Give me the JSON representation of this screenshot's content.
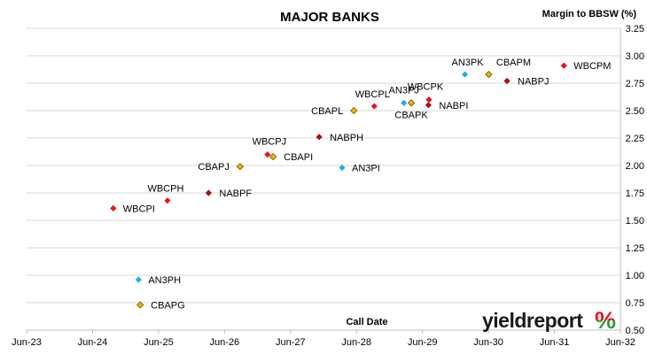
{
  "chart_data": {
    "type": "scatter",
    "title": "MAJOR BANKS",
    "xlabel": "Call Date",
    "ylabel": "Margin to BBSW (%)",
    "x_tick_labels": [
      "Jun-23",
      "Jun-24",
      "Jun-25",
      "Jun-26",
      "Jun-27",
      "Jun-28",
      "Jun-29",
      "Jun-30",
      "Jun-31",
      "Jun-32"
    ],
    "xlim": [
      "2023-06",
      "2032-06"
    ],
    "ylim": [
      0.5,
      3.25
    ],
    "y_ticks": [
      "0.50",
      "0.75",
      "1.00",
      "1.25",
      "1.50",
      "1.75",
      "2.00",
      "2.25",
      "2.50",
      "2.75",
      "3.00",
      "3.25"
    ],
    "grid": "horizontal",
    "legend": "none",
    "series": [
      {
        "color": "#e8141b",
        "marker": "diamond",
        "points": [
          {
            "label": "WBCPI",
            "x": "2024-09-23",
            "y": 1.61
          },
          {
            "label": "WBCPH",
            "x": "2025-07-20",
            "y": 1.68
          },
          {
            "label": "WBCPJ",
            "x": "2027-01-25",
            "y": 2.1
          },
          {
            "label": "WBCPL",
            "x": "2028-09-07",
            "y": 2.54
          },
          {
            "label": "WBCPK",
            "x": "2029-07-07",
            "y": 2.6
          },
          {
            "label": "WBCPM",
            "x": "2031-07-24",
            "y": 2.91
          }
        ]
      },
      {
        "color": "#1ab0e8",
        "marker": "diamond",
        "points": [
          {
            "label": "AN3PH",
            "x": "2025-02-10",
            "y": 0.96
          },
          {
            "label": "AN3PI",
            "x": "2028-03-13",
            "y": 1.98
          },
          {
            "label": "AN3PJ",
            "x": "2029-02-18",
            "y": 2.57
          },
          {
            "label": "AN3PK",
            "x": "2030-01-22",
            "y": 2.83
          }
        ]
      },
      {
        "color": "#a50f0f",
        "marker": "diamond",
        "points": [
          {
            "label": "NABPF",
            "x": "2026-03-05",
            "y": 1.75
          },
          {
            "label": "NABPH",
            "x": "2027-11-07",
            "y": 2.26
          },
          {
            "label": "NABPI",
            "x": "2029-07-04",
            "y": 2.55
          },
          {
            "label": "NABPJ",
            "x": "2030-09-12",
            "y": 2.77
          }
        ]
      },
      {
        "color": "#f0b400",
        "marker": "diamond",
        "points": [
          {
            "label": "CBAPG",
            "x": "2025-02-19",
            "y": 0.73
          },
          {
            "label": "CBAPJ",
            "x": "2026-08-26",
            "y": 1.99
          },
          {
            "label": "CBAPI",
            "x": "2027-02-25",
            "y": 2.08
          },
          {
            "label": "CBAPL",
            "x": "2028-05-17",
            "y": 2.5
          },
          {
            "label": "CBAPK",
            "x": "2029-03-31",
            "y": 2.57
          },
          {
            "label": "CBAPM",
            "x": "2030-06-03",
            "y": 2.83
          }
        ]
      }
    ]
  },
  "branding": {
    "logo_text": "yieldreport",
    "logo_symbol": "%",
    "logo_colors": {
      "text": "#1a1a1a",
      "symbol_top": "#e8141b",
      "symbol_bottom": "#2f9e3a"
    }
  }
}
